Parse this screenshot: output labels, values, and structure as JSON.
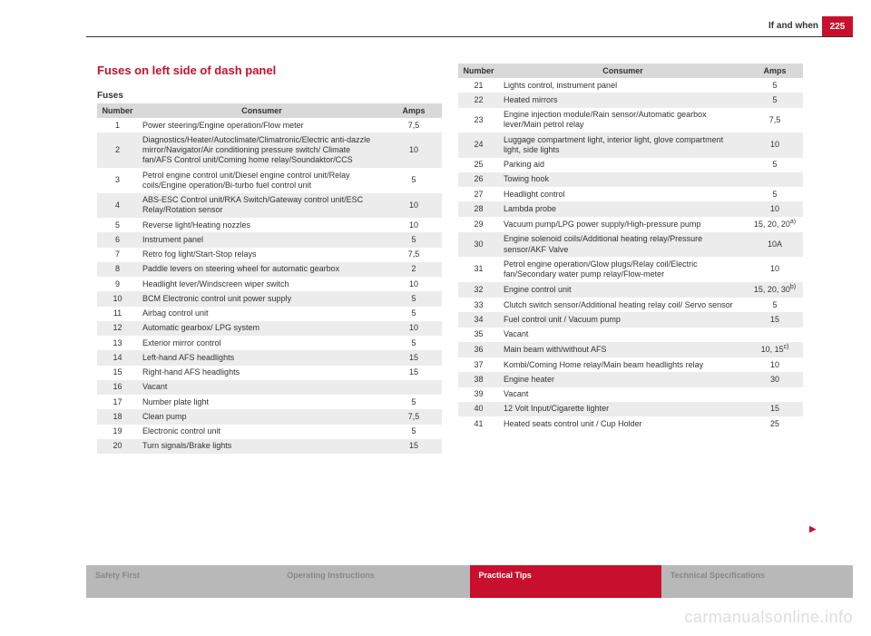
{
  "page": {
    "header_section": "If and when",
    "page_number": "225",
    "section_title": "Fuses on left side of dash panel",
    "subheading": "Fuses",
    "watermark": "carmanualsonline.info",
    "continue_marker": "▶"
  },
  "colors": {
    "brand_red": "#c8102e",
    "header_gray": "#d9d9d9",
    "row_alt": "#ececec",
    "footer_gray": "#b8b8b8",
    "text": "#333333",
    "watermark": "#dddddd"
  },
  "table_headers": {
    "number": "Number",
    "consumer": "Consumer",
    "amps": "Amps"
  },
  "fuses_left": [
    {
      "n": "1",
      "c": "Power steering/Engine operation/Flow meter",
      "a": "7,5"
    },
    {
      "n": "2",
      "c": "Diagnostics/Heater/Autoclimate/Climatronic/Electric anti-dazzle mirror/Navigator/Air conditioning pressure switch/ Climate fan/AFS Control unit/Coming home relay/Soundaktor/CCS",
      "a": "10"
    },
    {
      "n": "3",
      "c": "Petrol engine control unit/Diesel engine control unit/Relay coils/Engine operation/Bi-turbo fuel control unit",
      "a": "5"
    },
    {
      "n": "4",
      "c": "ABS-ESC Control unit/RKA Switch/Gateway control unit/ESC Relay/Rotation sensor",
      "a": "10"
    },
    {
      "n": "5",
      "c": "Reverse light/Heating nozzles",
      "a": "10"
    },
    {
      "n": "6",
      "c": "Instrument panel",
      "a": "5"
    },
    {
      "n": "7",
      "c": "Retro fog light/Start-Stop relays",
      "a": "7,5"
    },
    {
      "n": "8",
      "c": "Paddle levers on steering wheel for automatic gearbox",
      "a": "2"
    },
    {
      "n": "9",
      "c": "Headlight lever/Windscreen wiper switch",
      "a": "10"
    },
    {
      "n": "10",
      "c": "BCM Electronic control unit power supply",
      "a": "5"
    },
    {
      "n": "11",
      "c": "Airbag control unit",
      "a": "5"
    },
    {
      "n": "12",
      "c": "Automatic gearbox/ LPG system",
      "a": "10"
    },
    {
      "n": "13",
      "c": "Exterior mirror control",
      "a": "5"
    },
    {
      "n": "14",
      "c": "Left-hand AFS headlights",
      "a": "15"
    },
    {
      "n": "15",
      "c": "Right-hand AFS headlights",
      "a": "15"
    },
    {
      "n": "16",
      "c": "Vacant",
      "a": ""
    },
    {
      "n": "17",
      "c": "Number plate light",
      "a": "5"
    },
    {
      "n": "18",
      "c": "Clean pump",
      "a": "7,5"
    },
    {
      "n": "19",
      "c": "Electronic control unit",
      "a": "5"
    },
    {
      "n": "20",
      "c": "Turn signals/Brake lights",
      "a": "15"
    }
  ],
  "fuses_right": [
    {
      "n": "21",
      "c": "Lights control, instrument panel",
      "a": "5"
    },
    {
      "n": "22",
      "c": "Heated mirrors",
      "a": "5"
    },
    {
      "n": "23",
      "c": "Engine injection module/Rain sensor/Automatic gearbox lever/Main petrol relay",
      "a": "7,5"
    },
    {
      "n": "24",
      "c": "Luggage compartment light, interior light, glove compartment light, side lights",
      "a": "10"
    },
    {
      "n": "25",
      "c": "Parking aid",
      "a": "5"
    },
    {
      "n": "26",
      "c": "Towing hook",
      "a": ""
    },
    {
      "n": "27",
      "c": "Headlight control",
      "a": "5"
    },
    {
      "n": "28",
      "c": "Lambda probe",
      "a": "10"
    },
    {
      "n": "29",
      "c": "Vacuum pump/LPG power supply/High-pressure pump",
      "a": "15, 20, 20<sup>a)</sup>"
    },
    {
      "n": "30",
      "c": "Engine solenoid coils/Additional heating relay/Pressure sensor/AKF Valve",
      "a": "10A"
    },
    {
      "n": "31",
      "c": "Petrol engine operation/Glow plugs/Relay coil/Electric fan/Secondary water pump relay/Flow-meter",
      "a": "10"
    },
    {
      "n": "32",
      "c": "Engine control unit",
      "a": "15, 20, 30<sup>b)</sup>"
    },
    {
      "n": "33",
      "c": "Clutch switch sensor/Additional heating relay coil/ Servo sensor",
      "a": "5"
    },
    {
      "n": "34",
      "c": "Fuel control unit / Vacuum pump",
      "a": "15"
    },
    {
      "n": "35",
      "c": "Vacant",
      "a": ""
    },
    {
      "n": "36",
      "c": "Main beam with/without AFS",
      "a": "10, 15<sup>c)</sup>"
    },
    {
      "n": "37",
      "c": "Kombi/Coming Home relay/Main beam headlights relay",
      "a": "10"
    },
    {
      "n": "38",
      "c": "Engine heater",
      "a": "30"
    },
    {
      "n": "39",
      "c": "Vacant",
      "a": ""
    },
    {
      "n": "40",
      "c": "12 Volt Input/Cigarette lighter",
      "a": "15"
    },
    {
      "n": "41",
      "c": "Heated seats control unit / Cup Holder",
      "a": "25"
    }
  ],
  "footer_tabs": [
    {
      "label": "Safety First",
      "active": false
    },
    {
      "label": "Operating Instructions",
      "active": false
    },
    {
      "label": "Practical Tips",
      "active": true
    },
    {
      "label": "Technical Specifications",
      "active": false
    }
  ]
}
